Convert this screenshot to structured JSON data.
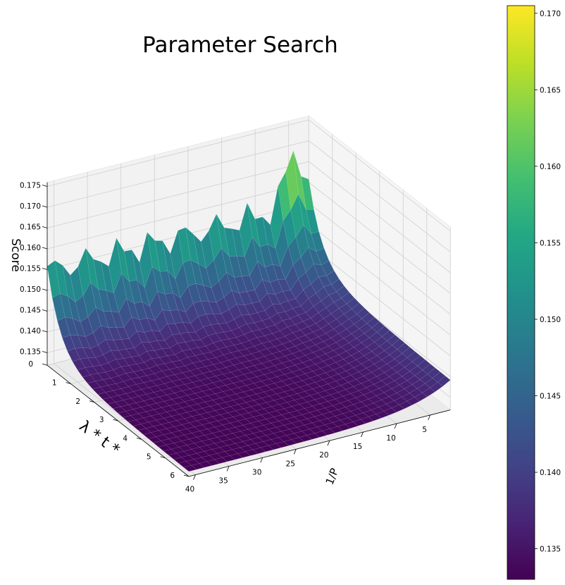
{
  "chart_data": {
    "type": "surface",
    "title": "Parameter Search",
    "xlabel": "1/P",
    "ylabel": "λ * t *",
    "zlabel": "Score",
    "colormap": "viridis",
    "x_axis": {
      "ticks": [
        5,
        10,
        15,
        20,
        25,
        30,
        35,
        40
      ],
      "range": [
        2,
        41
      ],
      "reversed": true
    },
    "y_axis": {
      "ticks": [
        0,
        1,
        2,
        3,
        4,
        5,
        6
      ],
      "range": [
        0,
        6
      ]
    },
    "z_axis": {
      "ticks": [
        "0.135",
        "0.140",
        "0.145",
        "0.150",
        "0.155",
        "0.160",
        "0.165",
        "0.170",
        "0.175"
      ],
      "range": [
        0.132,
        0.176
      ]
    },
    "colorbar": {
      "ticks": [
        "0.135",
        "0.140",
        "0.145",
        "0.150",
        "0.155",
        "0.160",
        "0.165",
        "0.170"
      ],
      "range": [
        0.133,
        0.1705
      ]
    },
    "grid": true,
    "series": [
      {
        "y": 0,
        "values_at_x": {
          "2": 0.149,
          "3": 0.152,
          "4": 0.1705,
          "6": 0.166,
          "10": 0.162,
          "15": 0.161,
          "20": 0.162,
          "25": 0.16,
          "30": 0.159,
          "35": 0.157,
          "40": 0.156
        }
      },
      {
        "y": 1,
        "values_at_x": {
          "2": 0.143,
          "5": 0.146,
          "10": 0.141,
          "20": 0.1395,
          "30": 0.139,
          "40": 0.138
        }
      },
      {
        "y": 2,
        "values_at_x": {
          "2": 0.139,
          "5": 0.14,
          "10": 0.136,
          "20": 0.135,
          "30": 0.1345,
          "40": 0.1345
        }
      },
      {
        "y": 6,
        "values_at_x": {
          "2": 0.1385,
          "5": 0.1375,
          "10": 0.134,
          "20": 0.133,
          "30": 0.133,
          "40": 0.133
        }
      }
    ]
  }
}
